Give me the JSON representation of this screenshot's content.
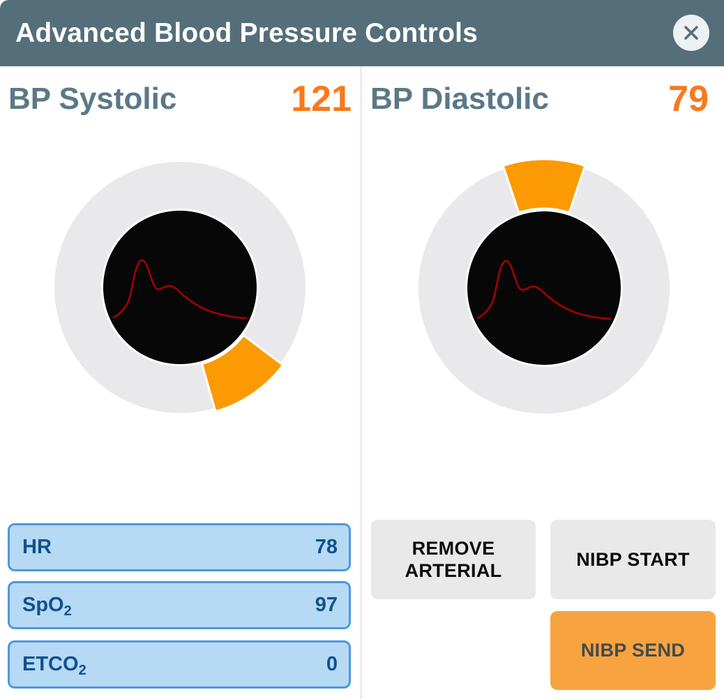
{
  "window": {
    "title": "Advanced Blood Pressure Controls"
  },
  "panels": [
    {
      "label": "BP Systolic",
      "value": "121"
    },
    {
      "label": "BP Diastolic",
      "value": "79"
    }
  ],
  "dials": [
    {
      "name": "systolic-dial",
      "wedge_center_deg": 145.5,
      "wedge_span_deg": 37
    },
    {
      "name": "diastolic-dial",
      "wedge_center_deg": 0,
      "wedge_span_deg": 37
    }
  ],
  "vitals": [
    {
      "label_base": "HR",
      "label_sub": "",
      "value": "78"
    },
    {
      "label_base": "SpO",
      "label_sub": "2",
      "value": "97"
    },
    {
      "label_base": "ETCO",
      "label_sub": "2",
      "value": "0"
    }
  ],
  "buttons": {
    "remove_arterial": "REMOVE ARTERIAL",
    "nibp_start": "NIBP START",
    "nibp_send": "NIBP SEND"
  },
  "colors": {
    "header_bg": "#546E7A",
    "slate_text": "#5B7886",
    "value_orange": "#F9791D",
    "wedge_orange": "#FB9A02",
    "send_orange": "#F7A440",
    "ring_gray": "#E9E9EB",
    "button_gray": "#E9E9E9",
    "row_fill": "#B6D9F4",
    "row_border": "#4E98DC",
    "row_text": "#10518E",
    "waveform_red": "#A50000",
    "dial_center_black": "#070707",
    "close_bg": "#EDF1F3",
    "close_x": "#546E7A"
  }
}
